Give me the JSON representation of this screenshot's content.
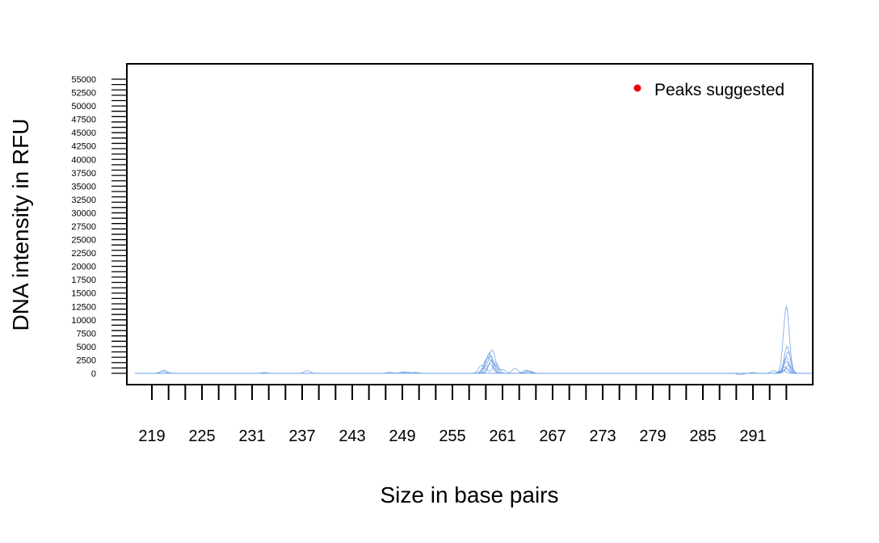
{
  "chart_data": {
    "type": "line",
    "title": "",
    "xlabel": "Size in base pairs",
    "ylabel": "DNA intensity in RFU",
    "xlim": [
      217,
      299
    ],
    "ylim": [
      -2000,
      57000
    ],
    "grid": false,
    "line_color": "#6a9be6",
    "legend": {
      "position": "top-right",
      "entries": [
        {
          "label": "Peaks suggested",
          "color": "#ee0000",
          "marker": "dot"
        }
      ]
    },
    "x_ticks": {
      "major": [
        219,
        225,
        231,
        237,
        243,
        249,
        255,
        261,
        267,
        273,
        279,
        285,
        291
      ],
      "labels": [
        "219",
        "225",
        "231",
        "237",
        "243",
        "249",
        "255",
        "261",
        "267",
        "273",
        "279",
        "285",
        "291"
      ],
      "minor_step": 2,
      "minor_start": 219,
      "minor_end": 295
    },
    "y_ticks": {
      "labels": [
        "0",
        "2500",
        "5000",
        "7500",
        "10000",
        "12500",
        "15000",
        "17500",
        "20000",
        "22500",
        "25000",
        "27500",
        "30000",
        "32500",
        "35000",
        "37500",
        "40000",
        "42500",
        "45000",
        "47500",
        "50000",
        "52500",
        "55000"
      ],
      "values": [
        0,
        2500,
        5000,
        7500,
        10000,
        12500,
        15000,
        17500,
        20000,
        22500,
        25000,
        27500,
        30000,
        32500,
        35000,
        37500,
        40000,
        42500,
        45000,
        47500,
        50000,
        52500,
        55000
      ],
      "minor_step": 1000,
      "minor_end": 55000
    },
    "series": [
      {
        "peaks": [
          [
            220.5,
            600
          ],
          [
            237.6,
            500
          ],
          [
            249.5,
            300
          ],
          [
            259.5,
            1800
          ],
          [
            262.5,
            900
          ],
          [
            264.0,
            500
          ],
          [
            295.0,
            12500
          ]
        ]
      },
      {
        "peaks": [
          [
            220.3,
            400
          ],
          [
            259.0,
            2200
          ],
          [
            259.8,
            4200
          ],
          [
            261.0,
            700
          ],
          [
            295.1,
            5000
          ]
        ]
      },
      {
        "peaks": [
          [
            258.5,
            1500
          ],
          [
            259.6,
            3300
          ],
          [
            263.8,
            600
          ],
          [
            294.8,
            1200
          ]
        ]
      },
      {
        "peaks": [
          [
            259.2,
            2800
          ],
          [
            260.0,
            1600
          ],
          [
            295.2,
            4000
          ]
        ]
      },
      {
        "peaks": [
          [
            258.8,
            1000
          ],
          [
            260.2,
            2000
          ],
          [
            294.5,
            600
          ]
        ]
      },
      {
        "peaks": [
          [
            259.4,
            3800
          ],
          [
            264.3,
            400
          ],
          [
            295.0,
            2200
          ]
        ]
      },
      {
        "peaks": [
          [
            247.5,
            200
          ],
          [
            249.0,
            250
          ],
          [
            250.5,
            200
          ],
          [
            295.0,
            900
          ]
        ]
      },
      {
        "peaks": [
          [
            232.5,
            150
          ],
          [
            259.7,
            2500
          ],
          [
            295.3,
            1600
          ]
        ]
      },
      {
        "peaks": [
          [
            289.5,
            -250
          ],
          [
            291.0,
            150
          ],
          [
            293.5,
            500
          ],
          [
            295.0,
            3000
          ]
        ]
      }
    ]
  }
}
